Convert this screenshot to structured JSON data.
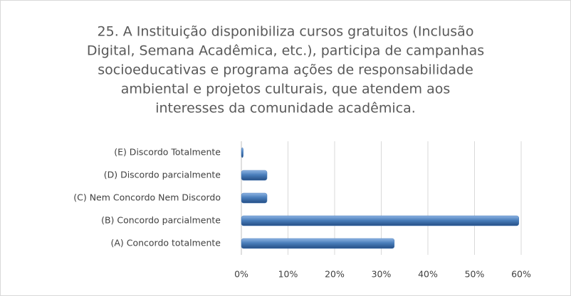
{
  "chart_data": {
    "type": "hbar",
    "title": [
      "25. A Instituição disponibiliza cursos gratuitos (Inclusão",
      "Digital, Semana Acadêmica, etc.), participa de campanhas",
      "socioeducativas e programa ações de responsabilidade",
      "ambiental e projetos culturais, que atendem aos",
      "interesses da comunidade acadêmica."
    ],
    "categories": [
      "(A) Concordo totalmente",
      "(B) Concordo parcialmente",
      "(C) Nem Concordo Nem Discordo",
      "(D) Discordo parcialmente",
      "(E) Discordo Totalmente"
    ],
    "values": [
      32.8,
      59.5,
      5.5,
      5.5,
      0.4
    ],
    "color": "#4a7ebb",
    "xlim": [
      0,
      60
    ],
    "xticks": [
      {
        "value": 0,
        "label": "0%"
      },
      {
        "value": 10,
        "label": "10%"
      },
      {
        "value": 20,
        "label": "20%"
      },
      {
        "value": 30,
        "label": "30%"
      },
      {
        "value": 40,
        "label": "40%"
      },
      {
        "value": 50,
        "label": "50%"
      },
      {
        "value": 60,
        "label": "60%"
      }
    ],
    "grid": true
  }
}
